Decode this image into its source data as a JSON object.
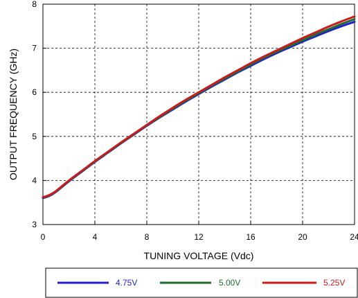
{
  "chart_data": {
    "type": "line",
    "title": "",
    "xlabel": "TUNING VOLTAGE (Vdc)",
    "ylabel": "OUTPUT FREQUENCY (GHz)",
    "xlim": [
      0,
      24
    ],
    "ylim": [
      3,
      8
    ],
    "x_ticks": [
      "0",
      "4",
      "8",
      "12",
      "16",
      "20",
      "24"
    ],
    "y_ticks": [
      "3",
      "4",
      "5",
      "6",
      "7",
      "8"
    ],
    "grid": true,
    "legend_position": "bottom",
    "x": [
      0,
      0.5,
      1,
      2,
      3,
      4,
      5,
      6,
      7,
      8,
      9,
      10,
      11,
      12,
      13,
      14,
      15,
      16,
      17,
      18,
      19,
      20,
      21,
      22,
      23,
      24
    ],
    "series": [
      {
        "name": "4.75V",
        "color": "#1f1fcf",
        "values": [
          3.6,
          3.65,
          3.74,
          3.98,
          4.2,
          4.42,
          4.63,
          4.84,
          5.04,
          5.24,
          5.43,
          5.61,
          5.79,
          5.96,
          6.13,
          6.29,
          6.45,
          6.6,
          6.75,
          6.89,
          7.02,
          7.15,
          7.27,
          7.39,
          7.5,
          7.6
        ]
      },
      {
        "name": "5.00V",
        "color": "#1e6b2e",
        "values": [
          3.61,
          3.66,
          3.75,
          3.99,
          4.21,
          4.43,
          4.64,
          4.85,
          5.05,
          5.25,
          5.44,
          5.63,
          5.81,
          5.98,
          6.15,
          6.31,
          6.47,
          6.63,
          6.78,
          6.92,
          7.05,
          7.18,
          7.31,
          7.43,
          7.55,
          7.66
        ]
      },
      {
        "name": "5.25V",
        "color": "#c81c1c",
        "values": [
          3.62,
          3.67,
          3.76,
          4.0,
          4.22,
          4.44,
          4.65,
          4.86,
          5.06,
          5.26,
          5.46,
          5.65,
          5.83,
          6.0,
          6.17,
          6.34,
          6.5,
          6.66,
          6.81,
          6.95,
          7.09,
          7.23,
          7.36,
          7.49,
          7.61,
          7.72
        ]
      }
    ]
  }
}
